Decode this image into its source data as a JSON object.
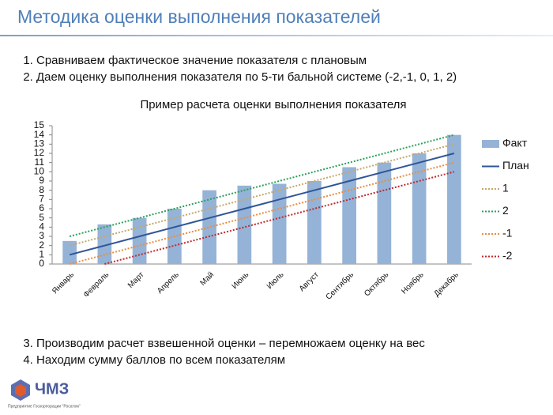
{
  "slide_title": "Методика оценки выполнения показателей",
  "steps_top": [
    "Сравниваем фактическое значение показателя с плановым",
    "Даем оценку выполнения показателя по 5-ти бальной системе (-2,-1, 0, 1, 2)"
  ],
  "steps_bottom": [
    "Производим расчет взвешенной оценки – перемножаем оценку на вес",
    "Находим сумму баллов по всем показателям"
  ],
  "logo": {
    "name": "ЧМЗ",
    "caption": "Предприятие Госкорпорации \"Росатом\""
  },
  "chart_data": {
    "type": "bar-line",
    "title": "Пример расчета оценки выполнения показателя",
    "categories": [
      "Январь",
      "Февраль",
      "Март",
      "Апрель",
      "Май",
      "Июнь",
      "Июль",
      "Август",
      "Сентябрь",
      "Октябрь",
      "Ноябрь",
      "Декабрь"
    ],
    "ylim": [
      0,
      15
    ],
    "yticks": [
      0,
      1,
      2,
      3,
      4,
      5,
      6,
      7,
      8,
      9,
      10,
      11,
      12,
      13,
      14,
      15
    ],
    "grid": false,
    "legend": "right",
    "series": [
      {
        "name": "Факт",
        "type": "bar",
        "color": "#95b3d7",
        "values": [
          2.5,
          4.3,
          5,
          6,
          8,
          8.5,
          8.7,
          9,
          10.5,
          11,
          12,
          14
        ]
      },
      {
        "name": "План",
        "type": "line",
        "line_style": "solid",
        "color": "#2f5597",
        "values": [
          1,
          2,
          3,
          4,
          5,
          6,
          7,
          8,
          9,
          10,
          11,
          12
        ]
      },
      {
        "name": "1",
        "type": "line",
        "line_style": "dotted",
        "color": "#c4a86a",
        "values": [
          2,
          3,
          4,
          5,
          6,
          7,
          8,
          9,
          10,
          11,
          12,
          13
        ]
      },
      {
        "name": "2",
        "type": "line",
        "line_style": "dotted",
        "color": "#2aa05a",
        "values": [
          3,
          4,
          5,
          6,
          7,
          8,
          9,
          10,
          11,
          12,
          13,
          14
        ]
      },
      {
        "name": "-1",
        "type": "line",
        "line_style": "dotted",
        "color": "#e98d3d",
        "values": [
          0,
          1,
          2,
          3,
          4,
          5,
          6,
          7,
          8,
          9,
          10,
          11
        ]
      },
      {
        "name": "-2",
        "type": "line",
        "line_style": "dotted",
        "color": "#c0282a",
        "values": [
          null,
          0,
          1,
          2,
          3,
          4,
          5,
          6,
          7,
          8,
          9,
          10
        ]
      }
    ]
  }
}
